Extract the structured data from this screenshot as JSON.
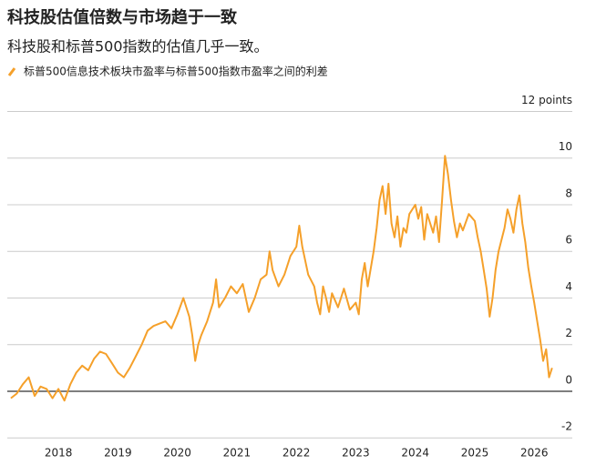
{
  "chart_data": {
    "type": "line",
    "title": "科技股估值倍数与市场趋于一致",
    "subtitle": "科技股和标普500指数的估值几乎一致。",
    "x": [
      2017.2,
      2017.3,
      2017.4,
      2017.5,
      2017.6,
      2017.7,
      2017.8,
      2017.9,
      2018.0,
      2018.1,
      2018.2,
      2018.3,
      2018.4,
      2018.5,
      2018.6,
      2018.7,
      2018.8,
      2018.9,
      2019.0,
      2019.1,
      2019.2,
      2019.3,
      2019.4,
      2019.5,
      2019.6,
      2019.7,
      2019.8,
      2019.9,
      2020.0,
      2020.1,
      2020.2,
      2020.25,
      2020.3,
      2020.35,
      2020.4,
      2020.5,
      2020.6,
      2020.65,
      2020.7,
      2020.8,
      2020.9,
      2021.0,
      2021.1,
      2021.2,
      2021.3,
      2021.4,
      2021.5,
      2021.55,
      2021.6,
      2021.7,
      2021.8,
      2021.9,
      2022.0,
      2022.05,
      2022.1,
      2022.2,
      2022.3,
      2022.35,
      2022.4,
      2022.45,
      2022.5,
      2022.55,
      2022.6,
      2022.7,
      2022.8,
      2022.9,
      2023.0,
      2023.05,
      2023.1,
      2023.15,
      2023.2,
      2023.3,
      2023.35,
      2023.4,
      2023.45,
      2023.5,
      2023.55,
      2023.6,
      2023.65,
      2023.7,
      2023.75,
      2023.8,
      2023.85,
      2023.9,
      2024.0,
      2024.05,
      2024.1,
      2024.15,
      2024.2,
      2024.3,
      2024.35,
      2024.4,
      2024.45,
      2024.5,
      2024.55,
      2024.6,
      2024.65,
      2024.7,
      2024.75,
      2024.8,
      2024.9,
      2025.0,
      2025.05,
      2025.1,
      2025.15,
      2025.2,
      2025.25,
      2025.3,
      2025.35,
      2025.4,
      2025.5,
      2025.55,
      2025.6,
      2025.65,
      2025.7,
      2025.75,
      2025.8,
      2025.85,
      2025.9,
      2025.95,
      2026.0,
      2026.05,
      2026.1,
      2026.15,
      2026.2,
      2026.25,
      2026.3
    ],
    "series": [
      {
        "name": "标普500信息技术板块市盈率与标普500指数市盈率之间的利差",
        "color": "#f5a02a",
        "values": [
          -0.3,
          -0.1,
          0.3,
          0.6,
          -0.2,
          0.2,
          0.1,
          -0.3,
          0.1,
          -0.4,
          0.3,
          0.8,
          1.1,
          0.9,
          1.4,
          1.7,
          1.6,
          1.2,
          0.8,
          0.6,
          1.0,
          1.5,
          2.0,
          2.6,
          2.8,
          2.9,
          3.0,
          2.7,
          3.3,
          4.0,
          3.2,
          2.4,
          1.3,
          2.0,
          2.4,
          3.0,
          3.8,
          4.8,
          3.6,
          4.0,
          4.5,
          4.2,
          4.6,
          3.4,
          4.0,
          4.8,
          5.0,
          6.0,
          5.2,
          4.5,
          5.0,
          5.8,
          6.2,
          7.1,
          6.2,
          5.0,
          4.5,
          3.8,
          3.3,
          4.5,
          4.0,
          3.4,
          4.2,
          3.6,
          4.4,
          3.5,
          3.8,
          3.3,
          4.8,
          5.5,
          4.5,
          6.0,
          7.0,
          8.2,
          8.8,
          7.6,
          8.9,
          7.2,
          6.6,
          7.5,
          6.2,
          7.0,
          6.8,
          7.6,
          8.0,
          7.4,
          7.9,
          6.5,
          7.6,
          6.8,
          7.5,
          6.4,
          8.2,
          10.1,
          9.3,
          8.2,
          7.3,
          6.6,
          7.2,
          6.9,
          7.6,
          7.3,
          6.6,
          6.0,
          5.2,
          4.4,
          3.2,
          4.0,
          5.2,
          6.0,
          7.0,
          7.8,
          7.4,
          6.8,
          7.8,
          8.4,
          7.2,
          6.4,
          5.3,
          4.5,
          3.8,
          3.0,
          2.2,
          1.3,
          1.8,
          0.6,
          1.0
        ]
      }
    ],
    "xlim": [
      2017.14,
      2026.64
    ],
    "xticks": [
      2018,
      2019,
      2020,
      2021,
      2022,
      2023,
      2024,
      2025,
      2026
    ],
    "ylim": [
      -2.5,
      12.8
    ],
    "yticks": [
      {
        "value": 12,
        "label": "12 points"
      },
      10,
      8,
      6,
      4,
      2,
      0,
      -2
    ],
    "grid": true
  }
}
